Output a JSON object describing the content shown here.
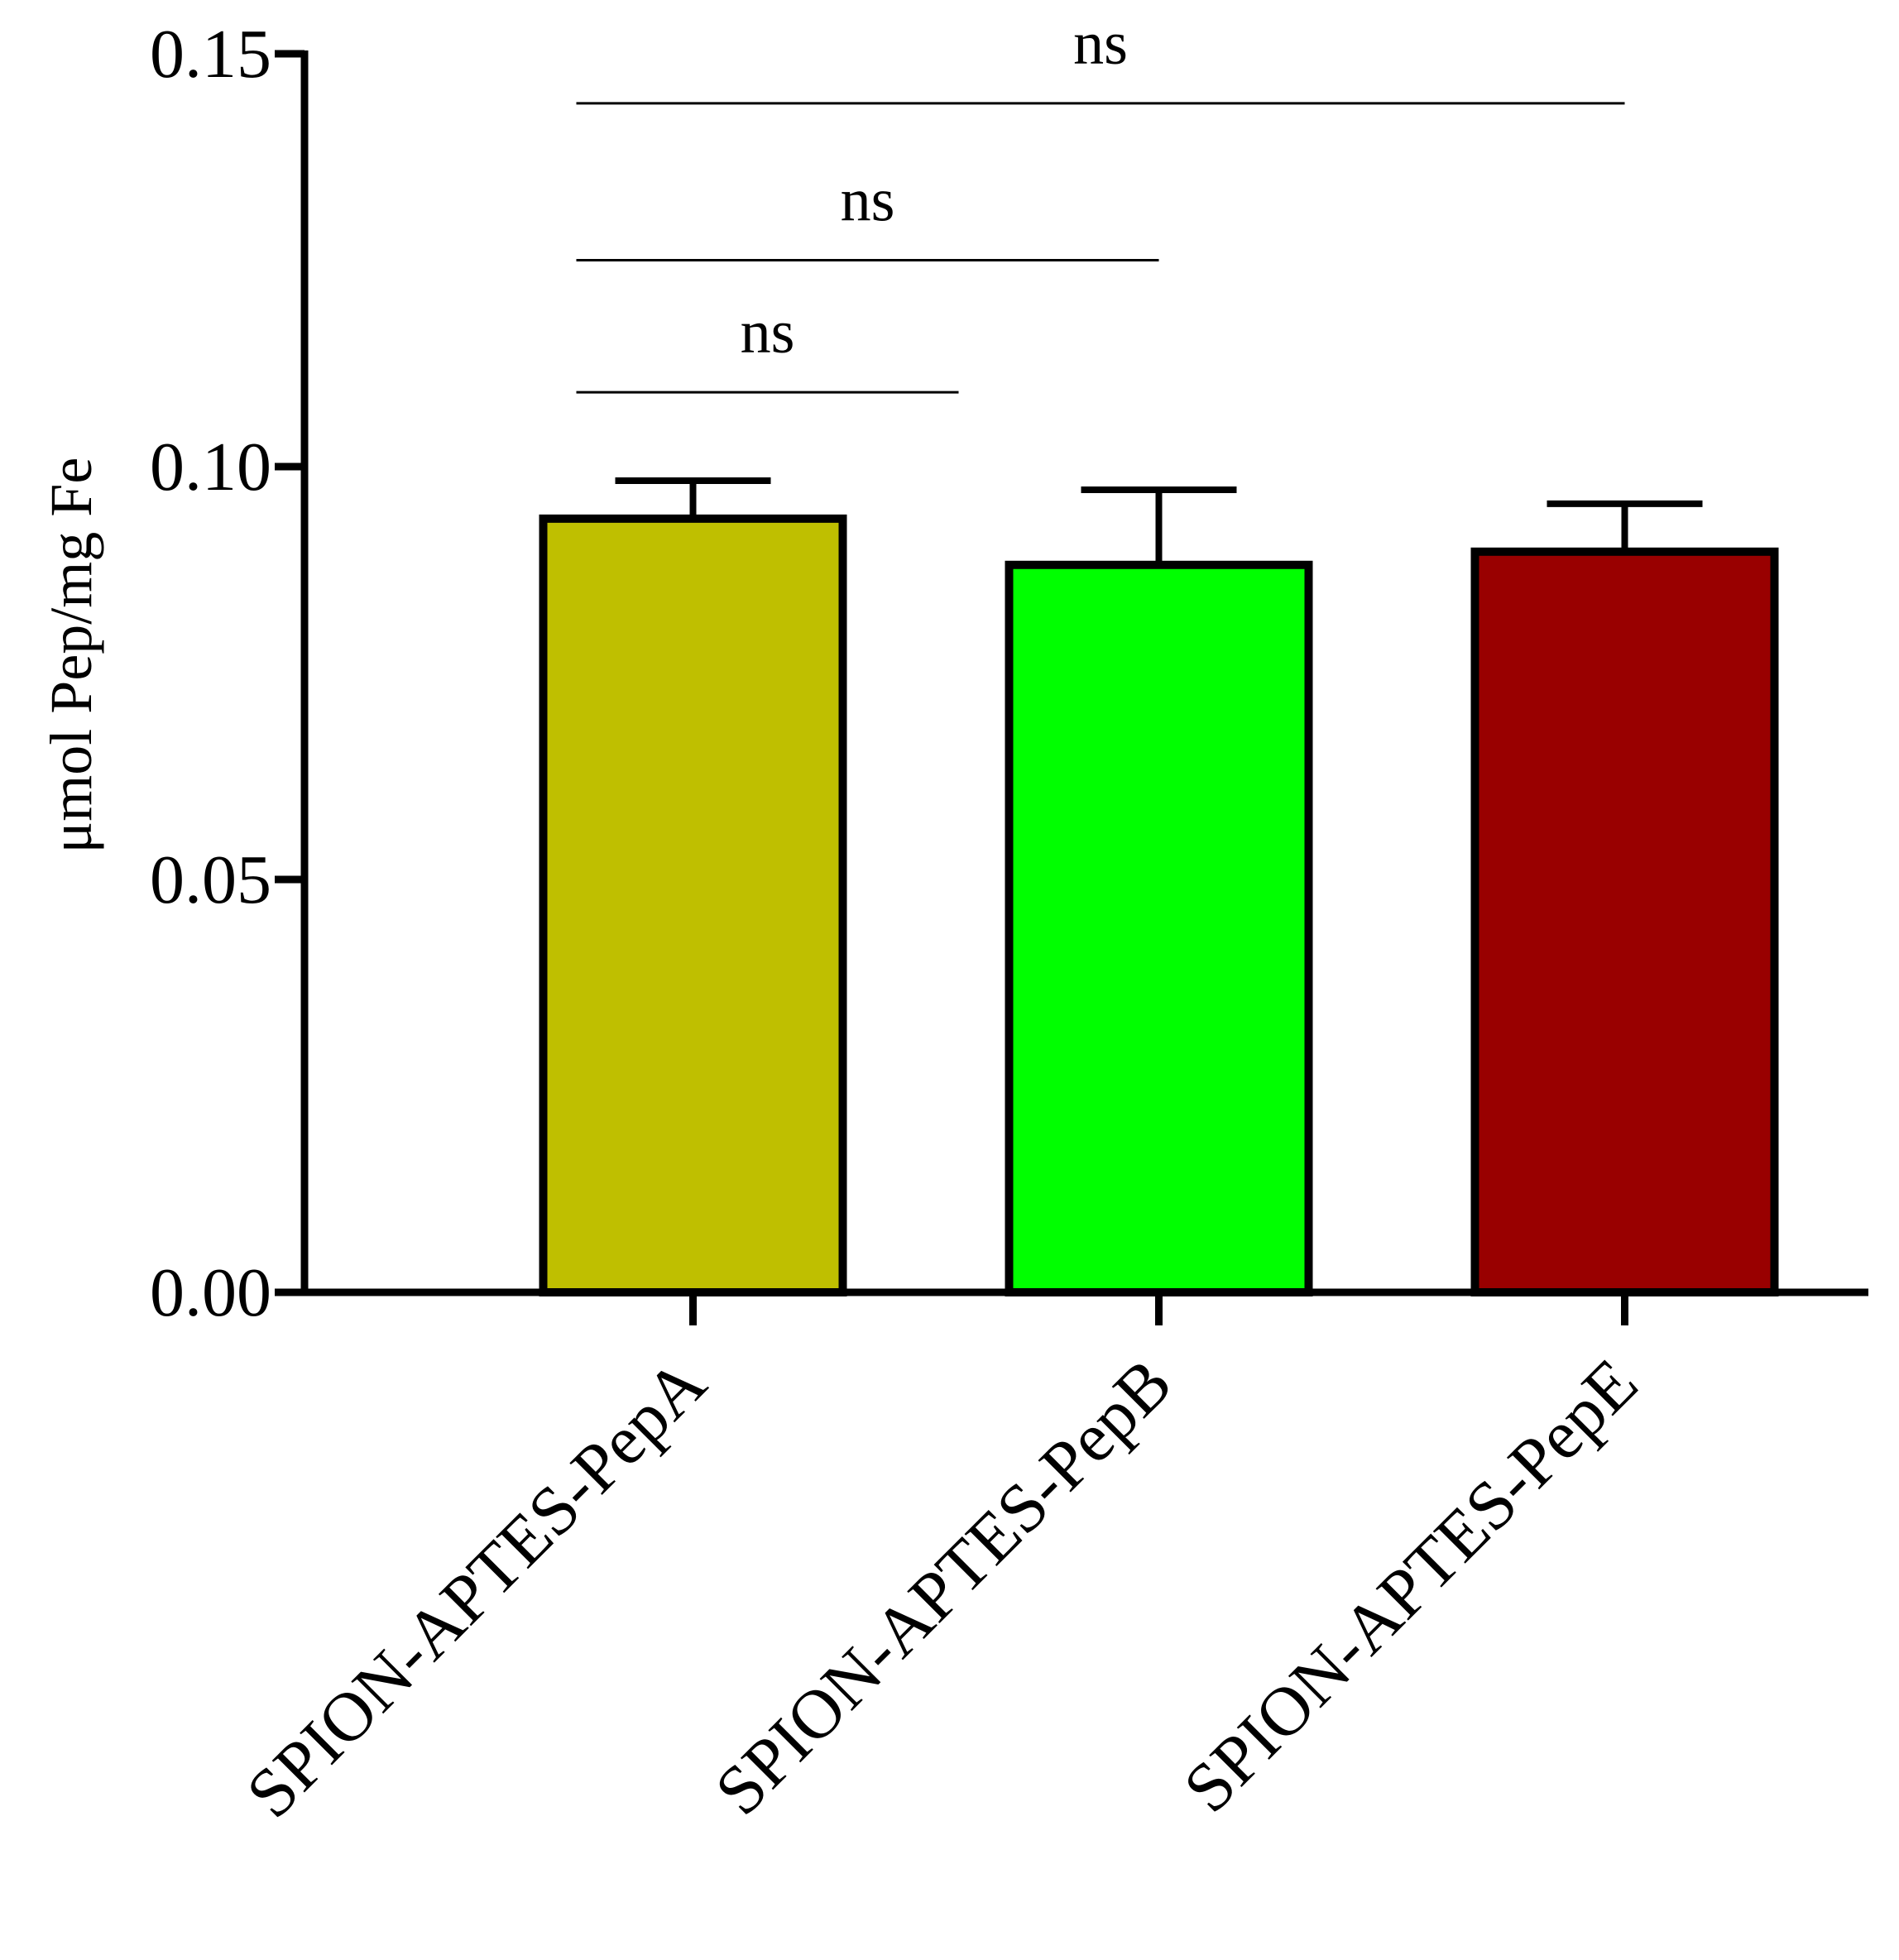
{
  "chart_data": {
    "type": "bar",
    "ylabel": "μmol Pep/mg Fe",
    "xlabel": "",
    "ylim": [
      0,
      0.15
    ],
    "yticks": [
      0.0,
      0.05,
      0.1,
      0.15
    ],
    "ytick_labels": [
      "0.00",
      "0.05",
      "0.10",
      "0.15"
    ],
    "categories": [
      "SPION-APTES-PepA",
      "SPION-APTES-PepB",
      "SPION-APTES-PepE"
    ],
    "values": [
      0.0937,
      0.0881,
      0.0897
    ],
    "error_upper": [
      0.0983,
      0.0972,
      0.0955
    ],
    "colors": [
      "#bfbf00",
      "#00ff00",
      "#990000"
    ],
    "edge_color": "#000000",
    "grid": false,
    "legend": "none",
    "significance": [
      {
        "from": 0,
        "to": 1,
        "label": "ns",
        "y": 0.109
      },
      {
        "from": 0,
        "to": 2,
        "label": "ns",
        "y": 0.125
      },
      {
        "from": 0,
        "to": 3,
        "label": "ns",
        "y": 0.144
      }
    ],
    "significance_ends": [
      1.35,
      2.35,
      3.35
    ]
  }
}
